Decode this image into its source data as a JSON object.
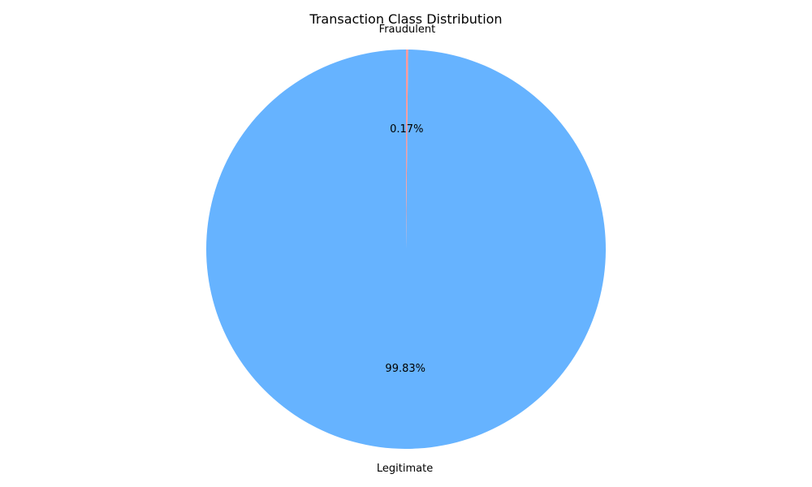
{
  "chart_data": {
    "type": "pie",
    "title": "Transaction Class Distribution",
    "start_angle_deg": 90,
    "direction": "counterclockwise",
    "slices": [
      {
        "label": "Legitimate",
        "value": 99.83,
        "pct_label": "99.83%",
        "color": "#66b3ff"
      },
      {
        "label": "Fraudulent",
        "value": 0.17,
        "pct_label": "0.17%",
        "color": "#ff9999"
      }
    ]
  }
}
